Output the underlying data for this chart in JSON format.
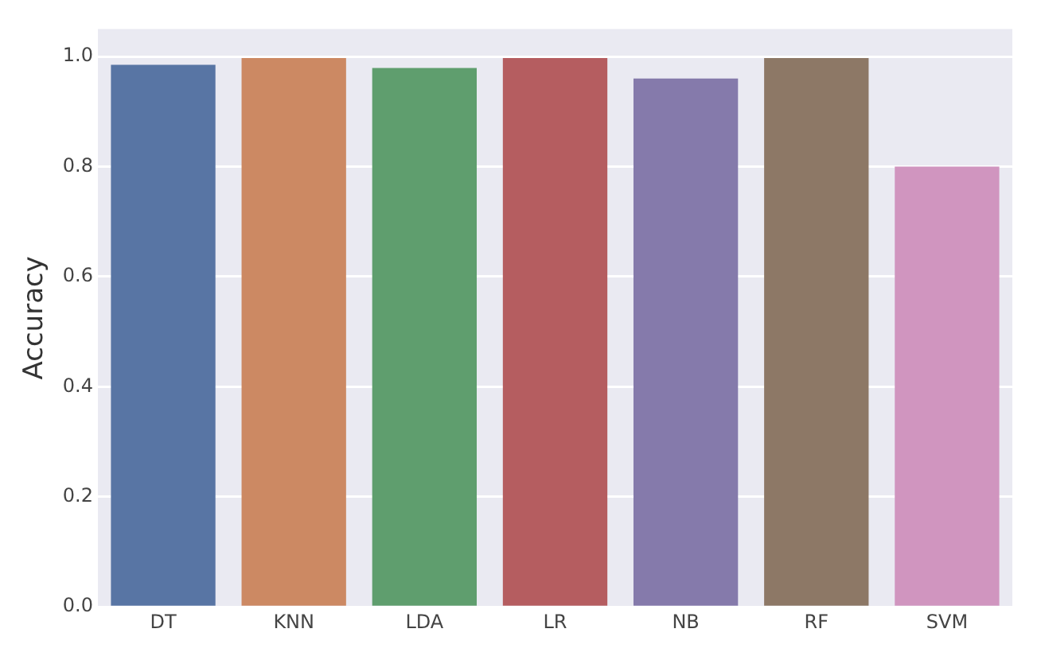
{
  "chart_data": {
    "type": "bar",
    "ylabel": "Accuracy",
    "categories": [
      "DT",
      "KNN",
      "LDA",
      "LR",
      "NB",
      "RF",
      "SVM"
    ],
    "values": [
      0.985,
      0.997,
      0.979,
      0.997,
      0.96,
      0.997,
      0.8
    ],
    "colors": [
      "#5875a4",
      "#cc8963",
      "#5f9e6e",
      "#b55d60",
      "#857aab",
      "#8d7866",
      "#d095bf"
    ],
    "ylim": [
      0,
      1.05
    ],
    "yticks": [
      {
        "value": 0,
        "label": "0.0"
      },
      0.2,
      0.4,
      0.6,
      0.8,
      {
        "value": 1,
        "label": "1.0"
      }
    ],
    "grid": "y"
  }
}
